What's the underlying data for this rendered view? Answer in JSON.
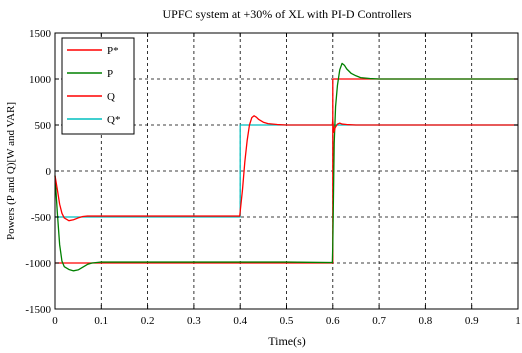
{
  "chart_data": {
    "type": "line",
    "title": "UPFC system at +30% of XL with PI-D Controllers",
    "xlabel": "Time(s)",
    "ylabel": "Powers (P and Q)[W and VAR]",
    "xlim": [
      0,
      1
    ],
    "ylim": [
      -1500,
      1500
    ],
    "xticks": [
      0,
      0.1,
      0.2,
      0.3,
      0.4,
      0.5,
      0.6,
      0.7,
      0.8,
      0.9,
      1
    ],
    "xtick_labels": [
      "0",
      "0.1",
      "0.2",
      "0.3",
      "0.4",
      "0.5",
      "0.6",
      "0.7",
      "0.8",
      "0.9",
      "1"
    ],
    "yticks": [
      -1500,
      -1000,
      -500,
      0,
      500,
      1000,
      1500
    ],
    "ytick_labels": [
      "-1500",
      "-1000",
      "-500",
      "0",
      "500",
      "1000",
      "1500"
    ],
    "grid": true,
    "legend_position": "top-left",
    "series": [
      {
        "name": "P*",
        "color": "#ff0000",
        "x": [
          0,
          0.6,
          0.6,
          1
        ],
        "y": [
          -1000,
          -1000,
          1000,
          1000
        ]
      },
      {
        "name": "P",
        "color": "#008000",
        "x": [
          0,
          0.005,
          0.01,
          0.015,
          0.02,
          0.03,
          0.04,
          0.05,
          0.06,
          0.07,
          0.08,
          0.09,
          0.1,
          0.12,
          0.15,
          0.2,
          0.3,
          0.4,
          0.5,
          0.599,
          0.6,
          0.603,
          0.606,
          0.61,
          0.615,
          0.62,
          0.625,
          0.63,
          0.64,
          0.65,
          0.66,
          0.68,
          0.7,
          0.75,
          0.8,
          0.9,
          1
        ],
        "y": [
          -50,
          -450,
          -800,
          -980,
          -1040,
          -1070,
          -1085,
          -1075,
          -1045,
          -1015,
          -1000,
          -995,
          -990,
          -990,
          -990,
          -990,
          -990,
          -990,
          -990,
          -995,
          -800,
          300,
          700,
          930,
          1100,
          1170,
          1150,
          1110,
          1060,
          1035,
          1015,
          1005,
          1000,
          1000,
          1000,
          1000,
          1000
        ]
      },
      {
        "name": "Q",
        "color": "#ff0000",
        "x": [
          0,
          0.005,
          0.01,
          0.015,
          0.02,
          0.03,
          0.04,
          0.05,
          0.06,
          0.07,
          0.08,
          0.1,
          0.2,
          0.3,
          0.399,
          0.4,
          0.405,
          0.41,
          0.415,
          0.42,
          0.425,
          0.43,
          0.435,
          0.44,
          0.45,
          0.46,
          0.48,
          0.5,
          0.599,
          0.6,
          0.602,
          0.605,
          0.61,
          0.615,
          0.62,
          0.63,
          0.65,
          0.7,
          0.8,
          0.9,
          1
        ],
        "y": [
          -50,
          -200,
          -360,
          -460,
          -510,
          -540,
          -530,
          -510,
          -495,
          -490,
          -490,
          -490,
          -490,
          -490,
          -490,
          -440,
          -200,
          100,
          330,
          500,
          580,
          600,
          585,
          560,
          530,
          515,
          505,
          500,
          500,
          560,
          420,
          470,
          510,
          520,
          510,
          505,
          500,
          500,
          500,
          500,
          500
        ]
      },
      {
        "name": "Q*",
        "color": "#00bfbf",
        "x": [
          0,
          0.4,
          0.4,
          1
        ],
        "y": [
          -500,
          -500,
          500,
          500
        ]
      }
    ]
  }
}
